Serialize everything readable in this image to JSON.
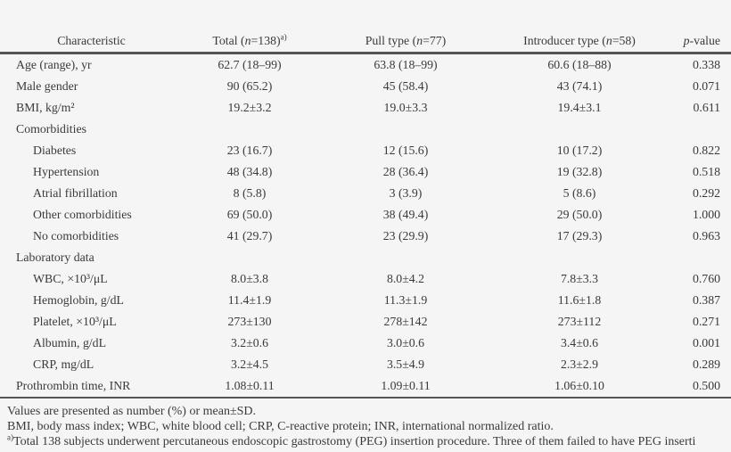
{
  "page": {
    "background": "#f5f5f6",
    "text_color": "#3a3a3a",
    "rule_color": "#565656"
  },
  "table": {
    "header": {
      "characteristic": "Characteristic",
      "total": {
        "pre": "Total (",
        "n": "n",
        "post": "=138)",
        "sup": "a)"
      },
      "pull": {
        "pre": "Pull type (",
        "n": "n",
        "post": "=77)"
      },
      "introducer": {
        "pre": "Introducer type (",
        "n": "n",
        "post": "=58)"
      },
      "pvalue": {
        "italic": "p",
        "post": "-value"
      }
    },
    "rows": [
      {
        "label": "Age (range), yr",
        "indent": 0,
        "section": false,
        "total": "62.7 (18–99)",
        "pull": "63.8 (18–99)",
        "introducer": "60.6 (18–88)",
        "p": "0.338"
      },
      {
        "label": "Male gender",
        "indent": 0,
        "section": false,
        "total": "90 (65.2)",
        "pull": "45 (58.4)",
        "introducer": "43 (74.1)",
        "p": "0.071"
      },
      {
        "label": "BMI, kg/m²",
        "indent": 0,
        "section": false,
        "total": "19.2±3.2",
        "pull": "19.0±3.3",
        "introducer": "19.4±3.1",
        "p": "0.611"
      },
      {
        "label": "Comorbidities",
        "indent": 0,
        "section": true,
        "total": "",
        "pull": "",
        "introducer": "",
        "p": ""
      },
      {
        "label": "Diabetes",
        "indent": 1,
        "section": false,
        "total": "23 (16.7)",
        "pull": "12 (15.6)",
        "introducer": "10 (17.2)",
        "p": "0.822"
      },
      {
        "label": "Hypertension",
        "indent": 1,
        "section": false,
        "total": "48 (34.8)",
        "pull": "28 (36.4)",
        "introducer": "19 (32.8)",
        "p": "0.518"
      },
      {
        "label": "Atrial fibrillation",
        "indent": 1,
        "section": false,
        "total": "8 (5.8)",
        "pull": "3 (3.9)",
        "introducer": "5 (8.6)",
        "p": "0.292"
      },
      {
        "label": "Other comorbidities",
        "indent": 1,
        "section": false,
        "total": "69 (50.0)",
        "pull": "38 (49.4)",
        "introducer": "29 (50.0)",
        "p": "1.000"
      },
      {
        "label": "No comorbidities",
        "indent": 1,
        "section": false,
        "total": "41 (29.7)",
        "pull": "23 (29.9)",
        "introducer": "17 (29.3)",
        "p": "0.963"
      },
      {
        "label": "Laboratory data",
        "indent": 0,
        "section": true,
        "total": "",
        "pull": "",
        "introducer": "",
        "p": ""
      },
      {
        "label": "WBC, ×10³/μL",
        "indent": 1,
        "section": false,
        "total": "8.0±3.8",
        "pull": "8.0±4.2",
        "introducer": "7.8±3.3",
        "p": "0.760"
      },
      {
        "label": "Hemoglobin, g/dL",
        "indent": 1,
        "section": false,
        "total": "11.4±1.9",
        "pull": "11.3±1.9",
        "introducer": "11.6±1.8",
        "p": "0.387"
      },
      {
        "label": "Platelet, ×10³/μL",
        "indent": 1,
        "section": false,
        "total": "273±130",
        "pull": "278±142",
        "introducer": "273±112",
        "p": "0.271"
      },
      {
        "label": "Albumin, g/dL",
        "indent": 1,
        "section": false,
        "total": "3.2±0.6",
        "pull": "3.0±0.6",
        "introducer": "3.4±0.6",
        "p": "0.001"
      },
      {
        "label": "CRP, mg/dL",
        "indent": 1,
        "section": false,
        "total": "3.2±4.5",
        "pull": "3.5±4.9",
        "introducer": "2.3±2.9",
        "p": "0.289"
      },
      {
        "label": "Prothrombin time, INR",
        "indent": 0,
        "section": false,
        "total": "1.08±0.11",
        "pull": "1.09±0.11",
        "introducer": "1.06±0.10",
        "p": "0.500"
      }
    ]
  },
  "footnotes": {
    "line1": "Values are presented as number (%) or mean±SD.",
    "line2": "BMI, body mass index; WBC, white blood cell; CRP, C-reactive protein; INR, international normalized ratio.",
    "line3_sup": "a)",
    "line3": "Total 138 subjects underwent percutaneous endoscopic gastrostomy (PEG) insertion procedure. Three of them failed to have PEG inserti"
  }
}
